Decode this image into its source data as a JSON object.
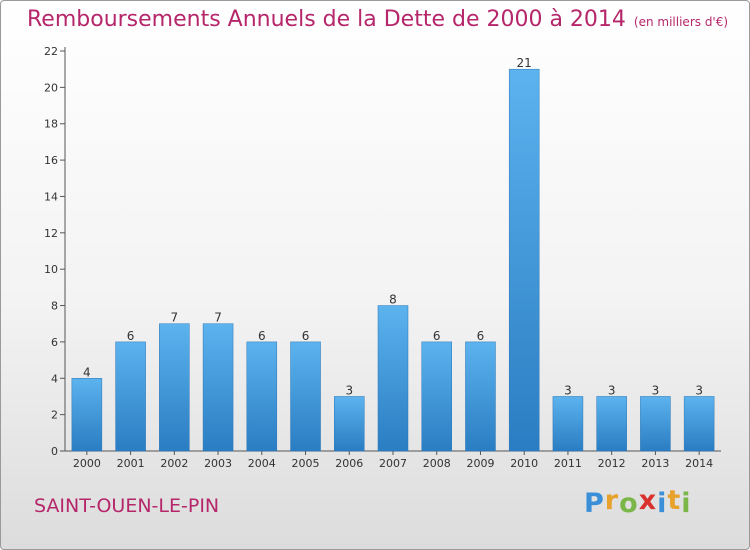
{
  "header": {
    "title": "Remboursements Annuels de la Dette de 2000 à 2014",
    "unit": "(en milliers d'€)"
  },
  "footer": {
    "commune": "SAINT-OUEN-LE-PIN",
    "logo_letters": [
      "P",
      "r",
      "o",
      "x",
      "i",
      "t",
      "i"
    ],
    "logo_colors": [
      "#3a8fd8",
      "#e8a12a",
      "#7ab648",
      "#d9322e",
      "#3a8fd8",
      "#e8a12a",
      "#7ab648"
    ]
  },
  "chart_data": {
    "type": "bar",
    "title": "Remboursements Annuels de la Dette de 2000 à 2014",
    "subtitle": "(en milliers d'€)",
    "categories": [
      "2000",
      "2001",
      "2002",
      "2003",
      "2004",
      "2005",
      "2006",
      "2007",
      "2008",
      "2009",
      "2010",
      "2011",
      "2012",
      "2013",
      "2014"
    ],
    "values": [
      4,
      6,
      7,
      7,
      6,
      6,
      3,
      8,
      6,
      6,
      21,
      3,
      3,
      3,
      3
    ],
    "value_labels": [
      "4",
      "6",
      "7",
      "7",
      "6",
      "6",
      "3",
      "8",
      "6",
      "6",
      "21",
      "3",
      "3",
      "3",
      "3"
    ],
    "yticks": [
      "0",
      "2",
      "4",
      "6",
      "8",
      "10",
      "12",
      "14",
      "16",
      "18",
      "20",
      "22"
    ],
    "ylim": [
      0,
      22
    ],
    "grid": false,
    "bar_color": "#4a9fdf"
  }
}
